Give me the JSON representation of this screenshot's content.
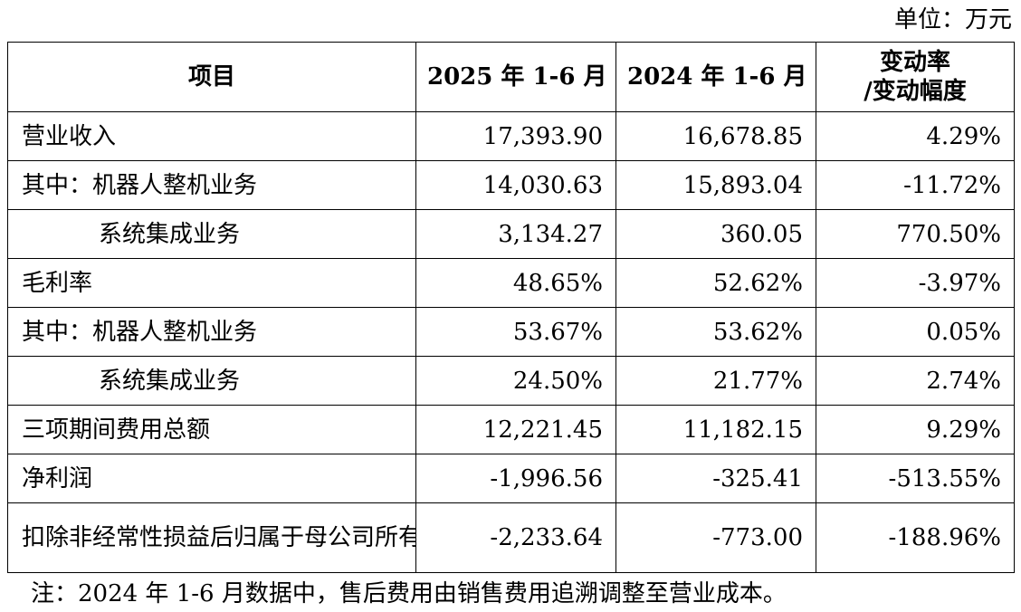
{
  "unit_label": "单位：万元",
  "table": {
    "headers": {
      "item": "项目",
      "col2025": "2025 年 1-6 月",
      "col2024": "2024 年 1-6 月",
      "change_line1": "变动率",
      "change_line2": "/变动幅度"
    },
    "rows": [
      {
        "label": "营业收入",
        "v2025": "17,393.90",
        "v2024": "16,678.85",
        "change": "4.29%"
      },
      {
        "label": "其中：机器人整机业务",
        "v2025": "14,030.63",
        "v2024": "15,893.04",
        "change": "-11.72%"
      },
      {
        "label": "系统集成业务",
        "v2025": "3,134.27",
        "v2024": "360.05",
        "change": "770.50%"
      },
      {
        "label": "毛利率",
        "v2025": "48.65%",
        "v2024": "52.62%",
        "change": "-3.97%"
      },
      {
        "label": "其中：机器人整机业务",
        "v2025": "53.67%",
        "v2024": "53.62%",
        "change": "0.05%"
      },
      {
        "label": "系统集成业务",
        "v2025": "24.50%",
        "v2024": "21.77%",
        "change": "2.74%"
      },
      {
        "label": "三项期间费用总额",
        "v2025": "12,221.45",
        "v2024": "11,182.15",
        "change": "9.29%"
      },
      {
        "label": "净利润",
        "v2025": "-1,996.56",
        "v2024": "-325.41",
        "change": "-513.55%"
      },
      {
        "label": "扣除非经常性损益后归属于母公司所有者的净利润",
        "v2025": "-2,233.64",
        "v2024": "-773.00",
        "change": "-188.96%"
      }
    ]
  },
  "note": "注：2024 年 1-6 月数据中，售后费用由销售费用追溯调整至营业成本。"
}
